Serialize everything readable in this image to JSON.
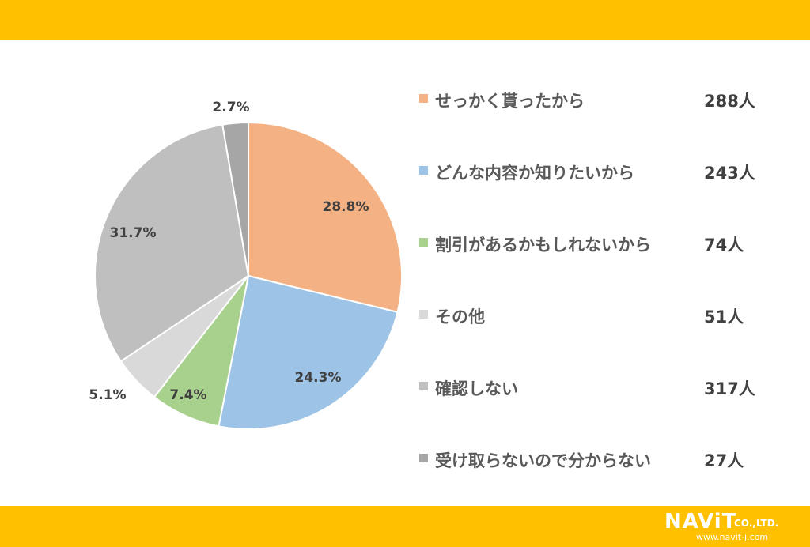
{
  "colors": {
    "accent": "#FFC000",
    "background": "#FFFFFF",
    "text": "#404040"
  },
  "logo": {
    "name": "NAViT",
    "company_suffix": "CO.,LTD.",
    "url": "www.navit-j.com"
  },
  "chart_data": {
    "type": "pie",
    "title": "",
    "slices": [
      {
        "label": "せっかく貰ったから",
        "count": "288人",
        "value": 288,
        "percent": "28.8%",
        "color": "#F4B183"
      },
      {
        "label": "どんな内容か知りたいから",
        "count": "243人",
        "value": 243,
        "percent": "24.3%",
        "color": "#9DC3E6"
      },
      {
        "label": "割引があるかもしれないから",
        "count": "74人",
        "value": 74,
        "percent": "7.4%",
        "color": "#A9D18E"
      },
      {
        "label": "その他",
        "count": "51人",
        "value": 51,
        "percent": "5.1%",
        "color": "#D9D9D9"
      },
      {
        "label": "確認しない",
        "count": "317人",
        "value": 317,
        "percent": "31.7%",
        "color": "#BFBFBF"
      },
      {
        "label": "受け取らないので分からない",
        "count": "27人",
        "value": 27,
        "percent": "2.7%",
        "color": "#A6A6A6"
      }
    ],
    "start_angle": "12 o'clock",
    "direction": "clockwise",
    "legend_position": "right"
  }
}
